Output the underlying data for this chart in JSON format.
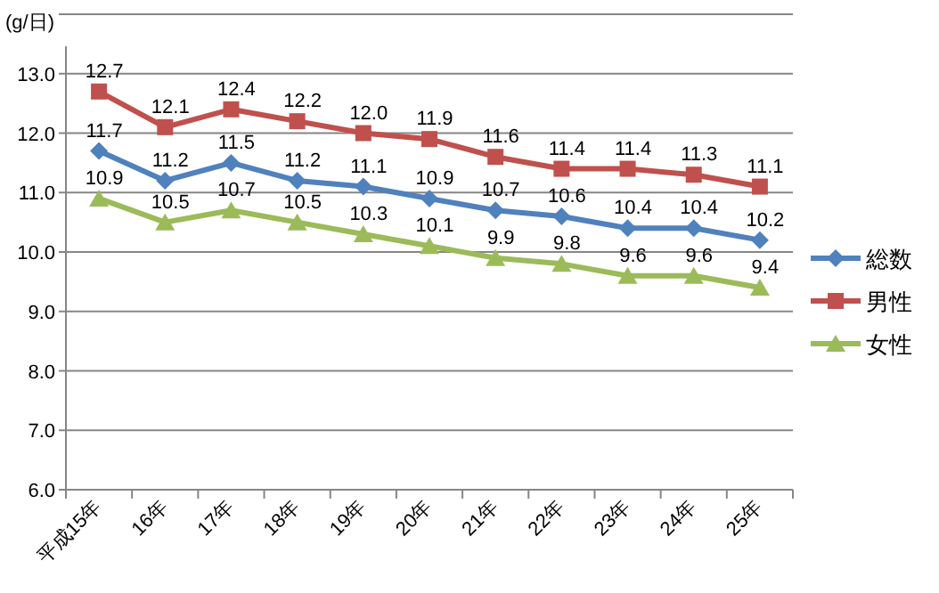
{
  "chart_data": {
    "type": "line",
    "ylabel": "(g/日)",
    "categories": [
      "平成15年",
      "16年",
      "17年",
      "18年",
      "19年",
      "20年",
      "21年",
      "22年",
      "23年",
      "24年",
      "25年"
    ],
    "series": [
      {
        "name": "総数",
        "color": "#4f81bd",
        "marker": "diamond",
        "values": [
          11.7,
          11.2,
          11.5,
          11.2,
          11.1,
          10.9,
          10.7,
          10.6,
          10.4,
          10.4,
          10.2
        ],
        "value_labels": [
          "11.7",
          "11.2",
          "11.5",
          "11.2",
          "11.1",
          "10.9",
          "10.7",
          "10.6",
          "10.4",
          "10.4",
          "10.2"
        ]
      },
      {
        "name": "男性",
        "color": "#c0504d",
        "marker": "square",
        "values": [
          12.7,
          12.1,
          12.4,
          12.2,
          12.0,
          11.9,
          11.6,
          11.4,
          11.4,
          11.3,
          11.1
        ],
        "value_labels": [
          "12.7",
          "12.1",
          "12.4",
          "12.2",
          "12.0",
          "11.9",
          "11.6",
          "11.4",
          "11.4",
          "11.3",
          "11.1"
        ]
      },
      {
        "name": "女性",
        "color": "#9bbb59",
        "marker": "triangle",
        "values": [
          10.9,
          10.5,
          10.7,
          10.5,
          10.3,
          10.1,
          9.9,
          9.8,
          9.6,
          9.6,
          9.4
        ],
        "value_labels": [
          "10.9",
          "10.5",
          "10.7",
          "10.5",
          "10.3",
          "10.1",
          "9.9",
          "9.8",
          "9.6",
          "9.6",
          "9.4"
        ]
      }
    ],
    "ylim": [
      6,
      14
    ],
    "yticks": [
      {
        "value": 6,
        "label": "6.0"
      },
      {
        "value": 7,
        "label": "7.0"
      },
      {
        "value": 8,
        "label": "8.0"
      },
      {
        "value": 9,
        "label": "9.0"
      },
      {
        "value": 10,
        "label": "10.0"
      },
      {
        "value": 11,
        "label": "11.0"
      },
      {
        "value": 12,
        "label": "12.0"
      },
      {
        "value": 13,
        "label": "13.0"
      },
      {
        "value": 14,
        "label": null
      }
    ],
    "grid": "y",
    "legend": "right"
  }
}
